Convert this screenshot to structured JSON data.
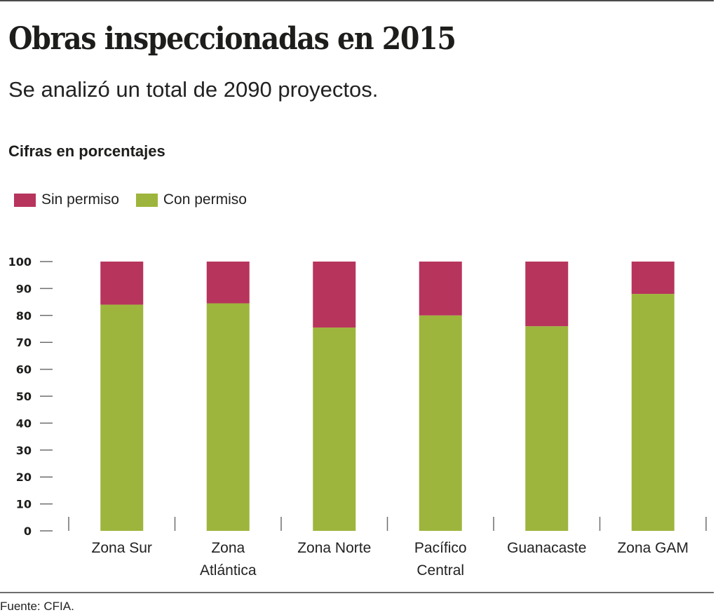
{
  "header": {
    "title": "Obras inspeccionadas en 2015",
    "subtitle": "Se analizó un total de 2090 proyectos.",
    "units_note": "Cifras en porcentajes"
  },
  "legend": [
    {
      "label": "Sin permiso",
      "color": "#b7345d"
    },
    {
      "label": "Con permiso",
      "color": "#9db53c"
    }
  ],
  "footer": {
    "source": "Fuente: CFIA."
  },
  "chart_data": {
    "type": "bar",
    "stacked": true,
    "title": "Obras inspeccionadas en 2015",
    "subtitle": "Se analizó un total de 2090 proyectos.",
    "xlabel": "",
    "ylabel": "Cifras en porcentajes",
    "ylim": [
      0,
      100
    ],
    "yticks": [
      0,
      10,
      20,
      30,
      40,
      50,
      60,
      70,
      80,
      90,
      100
    ],
    "grid": false,
    "legend_position": "top-left",
    "categories": [
      [
        "Zona Sur"
      ],
      [
        "Zona",
        "Atlántica"
      ],
      [
        "Zona Norte"
      ],
      [
        "Pacífico",
        "Central"
      ],
      [
        "Guanacaste"
      ],
      [
        "Zona GAM"
      ]
    ],
    "series": [
      {
        "name": "Con permiso",
        "color": "#9db53c",
        "values": [
          84,
          84.5,
          75.5,
          80,
          76,
          88
        ]
      },
      {
        "name": "Sin permiso",
        "color": "#b7345d",
        "values": [
          16,
          15.5,
          24.5,
          20,
          24,
          12
        ]
      }
    ]
  }
}
